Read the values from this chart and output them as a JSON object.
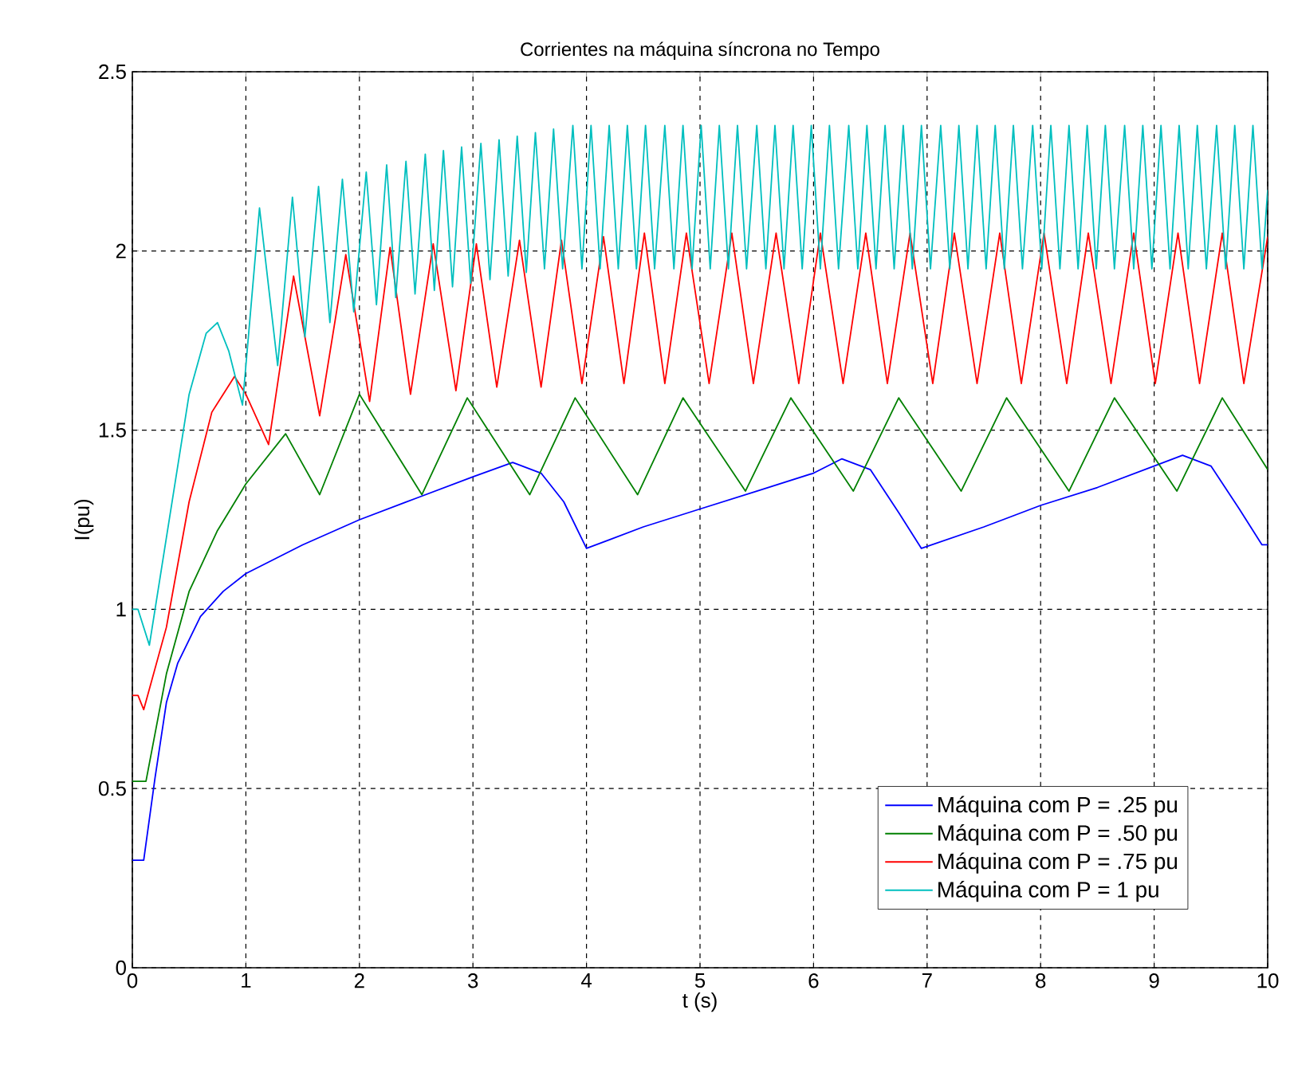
{
  "chart_data": {
    "type": "line",
    "title": "Corrientes na máquina síncrona no Tempo",
    "xlabel": "t (s)",
    "ylabel": "I(pu)",
    "xlim": [
      0,
      10
    ],
    "ylim": [
      0,
      2.5
    ],
    "xticks": [
      0,
      1,
      2,
      3,
      4,
      5,
      6,
      7,
      8,
      9,
      10
    ],
    "yticks": [
      0,
      0.5,
      1,
      1.5,
      2,
      2.5
    ],
    "grid": true,
    "legend": "bottom right",
    "line_style": "solid",
    "series": [
      {
        "name": "Máquina com P = .25 pu",
        "color": "#0000ff",
        "x": [
          0,
          0.1,
          0.2,
          0.3,
          0.4,
          0.6,
          0.8,
          1,
          1.5,
          2,
          2.5,
          3,
          3.35,
          3.6,
          3.8,
          4,
          4.5,
          5,
          5.5,
          6,
          6.25,
          6.5,
          6.75,
          6.95,
          7.5,
          8,
          8.5,
          9,
          9.25,
          9.5,
          9.75,
          9.95,
          10
        ],
        "values": [
          0.3,
          0.3,
          0.53,
          0.74,
          0.85,
          0.98,
          1.05,
          1.1,
          1.18,
          1.25,
          1.31,
          1.37,
          1.41,
          1.38,
          1.3,
          1.17,
          1.23,
          1.28,
          1.33,
          1.38,
          1.42,
          1.39,
          1.27,
          1.17,
          1.23,
          1.29,
          1.34,
          1.4,
          1.43,
          1.4,
          1.28,
          1.18,
          1.18
        ]
      },
      {
        "name": "Máquina com P = .50 pu",
        "color": "#008000",
        "x": [
          0,
          0.12,
          0.3,
          0.5,
          0.75,
          1,
          1.35,
          1.65,
          2.0,
          2.55,
          2.95,
          3.5,
          3.9,
          4.45,
          4.85,
          5.4,
          5.8,
          6.35,
          6.75,
          7.3,
          7.7,
          8.25,
          8.65,
          9.2,
          9.6,
          10
        ],
        "values": [
          0.52,
          0.52,
          0.82,
          1.05,
          1.22,
          1.35,
          1.49,
          1.32,
          1.6,
          1.32,
          1.59,
          1.32,
          1.59,
          1.32,
          1.59,
          1.33,
          1.59,
          1.33,
          1.59,
          1.33,
          1.59,
          1.33,
          1.59,
          1.33,
          1.59,
          1.39
        ]
      },
      {
        "name": "Máquina com P = .75 pu",
        "color": "#ff0000",
        "x": [
          0,
          0.05,
          0.1,
          0.3,
          0.5,
          0.7,
          0.9,
          1.0,
          1.2,
          1.42,
          1.65,
          1.88,
          2.09,
          2.27,
          2.45,
          2.65,
          2.85,
          3.03,
          3.21,
          3.41,
          3.6,
          3.78,
          3.96,
          4.15,
          4.33,
          4.51,
          4.69,
          4.88,
          5.08,
          5.28,
          5.47,
          5.67,
          5.87,
          6.06,
          6.26,
          6.46,
          6.65,
          6.85,
          7.05,
          7.24,
          7.44,
          7.64,
          7.83,
          8.03,
          8.23,
          8.42,
          8.62,
          8.82,
          9.01,
          9.21,
          9.4,
          9.6,
          9.79,
          10
        ],
        "values": [
          0.76,
          0.76,
          0.72,
          0.95,
          1.3,
          1.55,
          1.65,
          1.6,
          1.46,
          1.93,
          1.54,
          1.99,
          1.58,
          2.01,
          1.6,
          2.02,
          1.61,
          2.02,
          1.62,
          2.03,
          1.62,
          2.03,
          1.63,
          2.04,
          1.63,
          2.05,
          1.63,
          2.05,
          1.63,
          2.05,
          1.63,
          2.05,
          1.63,
          2.05,
          1.63,
          2.05,
          1.63,
          2.05,
          1.63,
          2.05,
          1.63,
          2.05,
          1.63,
          2.05,
          1.63,
          2.05,
          1.63,
          2.05,
          1.63,
          2.05,
          1.63,
          2.05,
          1.63,
          2.04
        ]
      },
      {
        "name": "Máquina com P = 1 pu",
        "color": "#00bfbf",
        "x": [
          0,
          0.05,
          0.15,
          0.3,
          0.5,
          0.65,
          0.75,
          0.85,
          0.97,
          1.12,
          1.28,
          1.41,
          1.52,
          1.64,
          1.74,
          1.85,
          1.95,
          2.06,
          2.15,
          2.24,
          2.32,
          2.41,
          2.49,
          2.58,
          2.66,
          2.74,
          2.82,
          2.9,
          2.98,
          3.07,
          3.15,
          3.23,
          3.31,
          3.39,
          3.47,
          3.55,
          3.63,
          3.71,
          3.79,
          3.88,
          3.96,
          4.04,
          4.12,
          4.2,
          4.28,
          4.36,
          4.44,
          4.52,
          4.6,
          4.69,
          4.77,
          4.85,
          4.93,
          5.01,
          5.09,
          5.17,
          5.25,
          5.33,
          5.41,
          5.5,
          5.58,
          5.66,
          5.74,
          5.82,
          5.9,
          5.98,
          6.06,
          6.14,
          6.22,
          6.31,
          6.39,
          6.47,
          6.55,
          6.63,
          6.71,
          6.79,
          6.87,
          6.95,
          7.03,
          7.12,
          7.2,
          7.28,
          7.36,
          7.44,
          7.52,
          7.6,
          7.68,
          7.76,
          7.84,
          7.93,
          8.01,
          8.09,
          8.17,
          8.25,
          8.33,
          8.41,
          8.49,
          8.57,
          8.65,
          8.74,
          8.82,
          8.9,
          8.98,
          9.06,
          9.14,
          9.22,
          9.3,
          9.38,
          9.46,
          9.55,
          9.63,
          9.71,
          9.79,
          9.87,
          9.95,
          10
        ],
        "values": [
          1.0,
          1.0,
          0.9,
          1.2,
          1.6,
          1.77,
          1.8,
          1.72,
          1.57,
          2.12,
          1.68,
          2.15,
          1.76,
          2.18,
          1.8,
          2.2,
          1.83,
          2.22,
          1.85,
          2.24,
          1.87,
          2.25,
          1.88,
          2.27,
          1.89,
          2.28,
          1.9,
          2.29,
          1.91,
          2.3,
          1.92,
          2.31,
          1.93,
          2.32,
          1.94,
          2.33,
          1.95,
          2.34,
          1.95,
          2.35,
          1.95,
          2.35,
          1.95,
          2.35,
          1.95,
          2.35,
          1.95,
          2.35,
          1.95,
          2.35,
          1.95,
          2.35,
          1.95,
          2.35,
          1.95,
          2.35,
          1.95,
          2.35,
          1.95,
          2.35,
          1.95,
          2.35,
          1.95,
          2.35,
          1.95,
          2.35,
          1.95,
          2.35,
          1.95,
          2.35,
          1.95,
          2.35,
          1.95,
          2.35,
          1.95,
          2.35,
          1.95,
          2.35,
          1.95,
          2.35,
          1.95,
          2.35,
          1.95,
          2.35,
          1.95,
          2.35,
          1.95,
          2.35,
          1.95,
          2.35,
          1.95,
          2.35,
          1.95,
          2.35,
          1.95,
          2.35,
          1.95,
          2.35,
          1.95,
          2.35,
          1.95,
          2.35,
          1.95,
          2.35,
          1.95,
          2.35,
          1.95,
          2.35,
          1.95,
          2.35,
          1.95,
          2.35,
          1.95,
          2.35,
          1.95,
          2.17
        ]
      }
    ]
  }
}
